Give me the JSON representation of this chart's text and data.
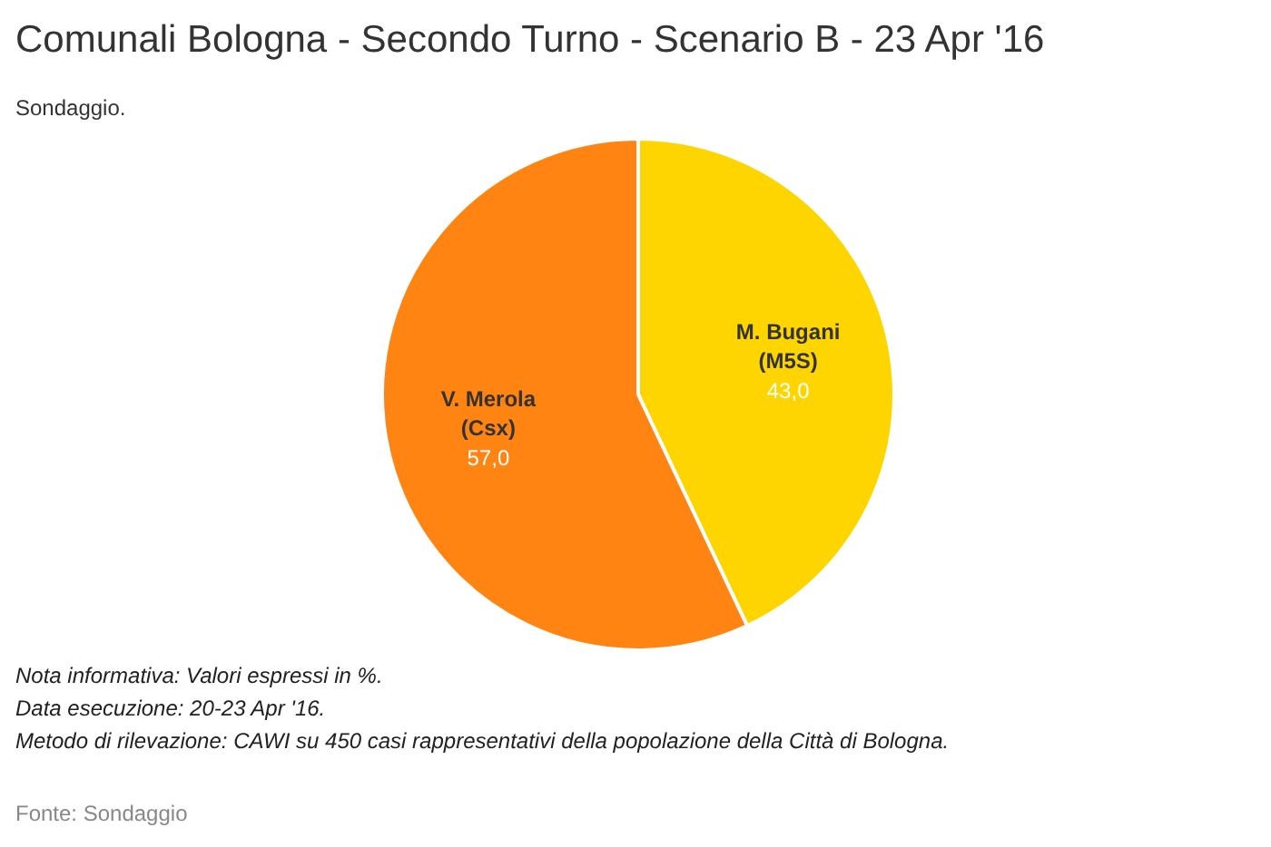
{
  "chart_data": {
    "type": "pie",
    "title": "Comunali Bologna - Secondo Turno - Scenario B - 23 Apr '16",
    "subtitle": "Sondaggio.",
    "categories": [
      "M. Bugani\n(M5S)",
      "V. Merola\n(Csx)"
    ],
    "values": [
      43,
      57
    ],
    "colors": [
      "#ffd500",
      "#ff8412"
    ],
    "value_labels": [
      "43,0",
      "57,0"
    ],
    "legend": false,
    "annotations": [
      "Nota informativa: Valori espressi in %.",
      "Data esecuzione: 20-23 Apr '16.",
      "Metodo di rilevazione: CAWI su 450 casi rappresentativi della popolazione della Città di Bologna.",
      "Fonte: Sondaggio"
    ]
  }
}
